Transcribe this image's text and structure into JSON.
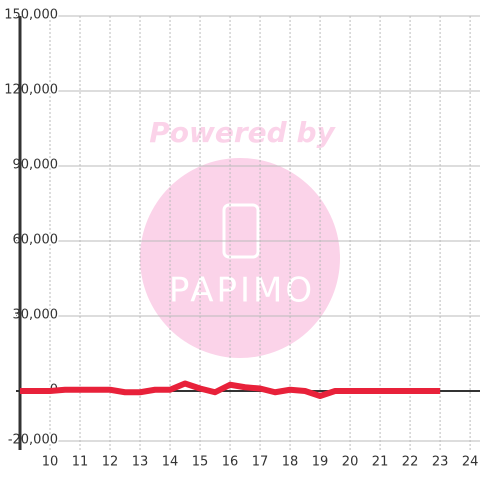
{
  "chart_data": {
    "type": "line",
    "watermark": [
      "Powered by",
      "PAPIMO"
    ],
    "x": [
      9,
      9.5,
      10,
      10.5,
      11,
      11.5,
      12,
      12.5,
      13,
      13.5,
      14,
      14.5,
      15,
      15.5,
      16,
      16.5,
      17,
      17.5,
      18,
      18.5,
      19,
      19.5,
      20,
      20.5,
      21,
      21.5,
      22,
      22.5,
      23
    ],
    "series": [
      {
        "color": "#e8213a",
        "values": [
          0,
          0,
          0,
          500,
          500,
          500,
          500,
          -500,
          -500,
          500,
          500,
          3000,
          1000,
          -500,
          2500,
          1500,
          1000,
          -500,
          500,
          0,
          -2000,
          0,
          0,
          0,
          0,
          0,
          0,
          0,
          0
        ]
      }
    ],
    "xlim": [
      9,
      24.33
    ],
    "xticks": [
      10,
      11,
      12,
      13,
      14,
      15,
      16,
      17,
      18,
      19,
      20,
      21,
      22,
      23,
      24
    ],
    "ylim": [
      -23600,
      150000
    ],
    "yticks": [
      {
        "value": -20000,
        "label": "-20,000"
      },
      0,
      {
        "value": 30000,
        "label": "30,000"
      },
      {
        "value": 60000,
        "label": "60,000"
      },
      {
        "value": 90000,
        "label": "90,000"
      },
      {
        "value": 120000,
        "label": "120,000"
      },
      {
        "value": 150000,
        "label": "150,000"
      }
    ],
    "grid": true
  }
}
